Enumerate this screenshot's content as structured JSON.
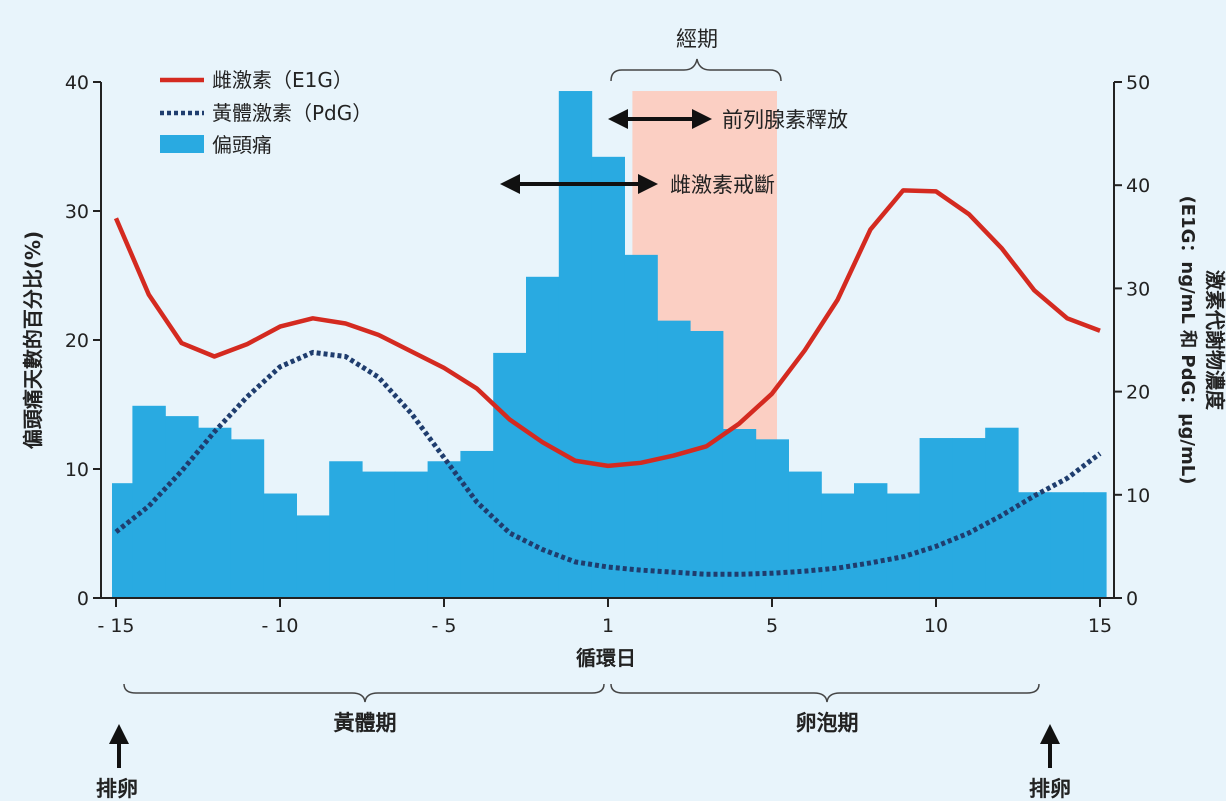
{
  "chart_data": {
    "type": "bar+line",
    "xlabel": "循環日",
    "ylabel_left": "偏頭痛天數的百分比(%)",
    "ylabel_right_line1": "激素代謝物濃度",
    "ylabel_right_line2": "(E1G：ng/mL 和 PdG：μg/mL)",
    "x_ticks": [
      {
        "label": "- 15",
        "value": -15
      },
      {
        "label": "- 10",
        "value": -10
      },
      {
        "label": "- 5",
        "value": -5
      },
      {
        "label": "1",
        "value": 0
      },
      {
        "label": "5",
        "value": 5
      },
      {
        "label": "10",
        "value": 10
      },
      {
        "label": "15",
        "value": 15
      }
    ],
    "ylim_left": [
      0,
      40
    ],
    "y_ticks_left": [
      0,
      10,
      20,
      30,
      40
    ],
    "ylim_right": [
      0,
      50
    ],
    "y_ticks_right": [
      0,
      10,
      20,
      30,
      40,
      50
    ],
    "legend_position": "top-left",
    "series": [
      {
        "name": "偏頭痛",
        "kind": "bar",
        "color": "#29aae1",
        "x": [
          -15,
          -14,
          -13,
          -12,
          -11,
          -10,
          -9,
          -8,
          -7,
          -6,
          -5,
          -4,
          -3,
          -2,
          -1,
          0,
          1,
          2,
          3,
          4,
          5,
          6,
          7,
          8,
          9,
          10,
          11,
          12,
          13,
          14,
          15
        ],
        "values": [
          8.9,
          14.9,
          14.1,
          13.2,
          12.3,
          8.1,
          6.4,
          10.6,
          9.8,
          9.8,
          10.6,
          11.4,
          19.0,
          24.9,
          39.3,
          34.2,
          26.6,
          21.5,
          20.7,
          13.1,
          12.3,
          9.8,
          8.1,
          8.9,
          8.1,
          12.4,
          12.4,
          13.2,
          8.2,
          8.2,
          8.2
        ]
      },
      {
        "name": "雌激素（E1G）",
        "kind": "line",
        "axis": "right",
        "color": "#d42a20",
        "x": [
          -15,
          -14,
          -13,
          -12,
          -11,
          -10,
          -9,
          -8,
          -7,
          -6,
          -5,
          -4,
          -3,
          -2,
          -1,
          0,
          1,
          2,
          3,
          4,
          5,
          6,
          7,
          8,
          9,
          10,
          11,
          12,
          13,
          14,
          15
        ],
        "values": [
          36.8,
          29.4,
          24.7,
          23.4,
          24.6,
          26.3,
          27.1,
          26.6,
          25.5,
          23.9,
          22.3,
          20.3,
          17.3,
          15.1,
          13.3,
          12.8,
          13.1,
          13.8,
          14.7,
          16.9,
          19.8,
          24.0,
          28.9,
          35.7,
          39.5,
          39.4,
          37.2,
          33.9,
          29.8,
          27.1,
          25.9
        ]
      },
      {
        "name": "黃體激素（PdG）",
        "kind": "line",
        "axis": "right",
        "color": "#1f3d6e",
        "dashed": true,
        "x": [
          -15,
          -14,
          -13,
          -12,
          -11,
          -10,
          -9,
          -8,
          -7,
          -6,
          -5,
          -4,
          -3,
          -2,
          -1,
          0,
          1,
          2,
          3,
          4,
          5,
          6,
          7,
          8,
          9,
          10,
          11,
          12,
          13,
          14,
          15
        ],
        "values": [
          6.4,
          8.9,
          12.3,
          16.1,
          19.5,
          22.4,
          23.8,
          23.4,
          21.4,
          17.9,
          13.6,
          9.3,
          6.3,
          4.7,
          3.5,
          3.0,
          2.7,
          2.5,
          2.3,
          2.3,
          2.4,
          2.6,
          2.9,
          3.4,
          4.0,
          5.0,
          6.3,
          8.0,
          9.9,
          11.6,
          14.0
        ]
      }
    ],
    "shaded_region": {
      "x_start": 1,
      "x_end": 5,
      "color": "#fbcfc3"
    },
    "annotations": {
      "menses": "經期",
      "prostaglandin": "前列腺素釋放",
      "estrogen_withdrawal": "雌激素戒斷",
      "luteal": "黃體期",
      "follicular": "卵泡期",
      "ovulation_left": "排卵",
      "ovulation_right": "排卵"
    }
  }
}
